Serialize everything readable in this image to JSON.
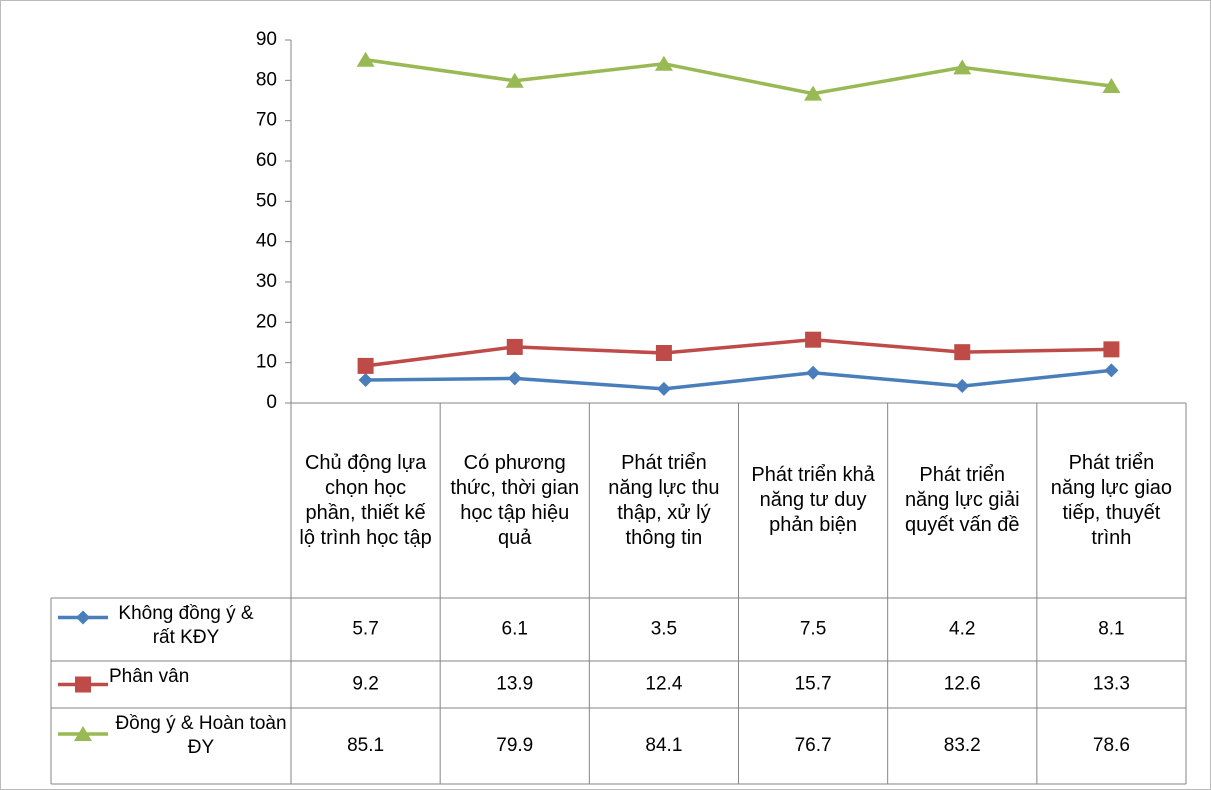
{
  "chart_data": {
    "type": "line",
    "categories": [
      "Chủ động lựa chọn học phần, thiết kế lộ trình học tập",
      "Có phương thức, thời gian học tập hiệu quả",
      "Phát triển năng lực thu thập, xử lý thông tin",
      "Phát triển khả năng tư duy phản biện",
      "Phát triển năng lực giải quyết vấn đề",
      "Phát triển năng lực giao tiếp, thuyết trình"
    ],
    "series": [
      {
        "name": "Không đồng ý & rất KĐY",
        "color": "#4a7ebb",
        "marker": "diamond",
        "values": [
          5.7,
          6.1,
          3.5,
          7.5,
          4.2,
          8.1
        ]
      },
      {
        "name": "Phân vân",
        "color": "#be4b48",
        "marker": "square",
        "values": [
          9.2,
          13.9,
          12.4,
          15.7,
          12.6,
          13.3
        ]
      },
      {
        "name": "Đồng ý & Hoàn toàn ĐY",
        "color": "#98b954",
        "marker": "triangle",
        "values": [
          85.1,
          79.9,
          84.1,
          76.7,
          83.2,
          78.6
        ]
      }
    ],
    "ylim": [
      0,
      90
    ],
    "yticks": [
      0,
      10,
      20,
      30,
      40,
      50,
      60,
      70,
      80,
      90
    ],
    "grid": false
  }
}
